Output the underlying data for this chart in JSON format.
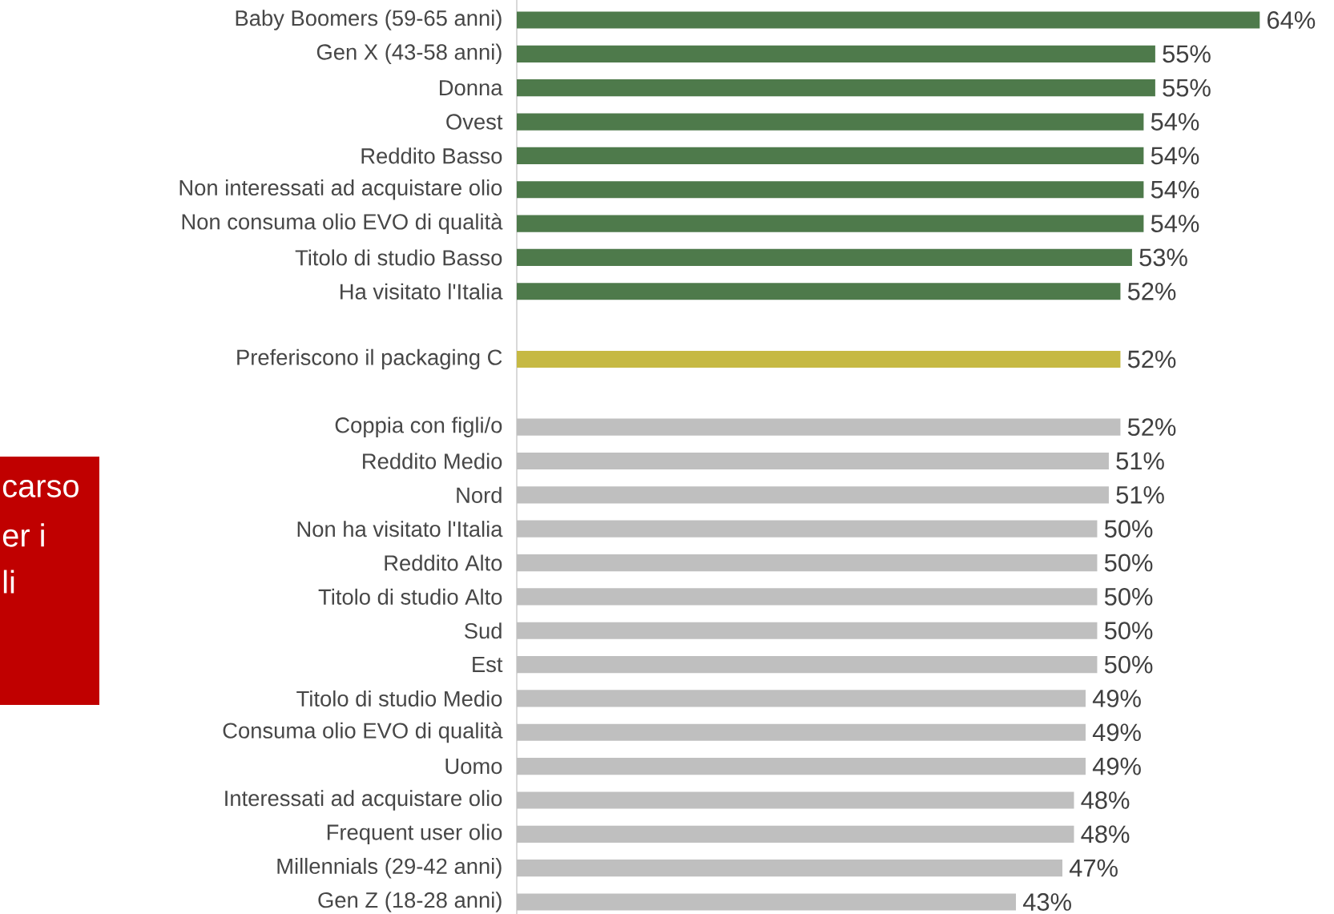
{
  "chart_data": {
    "type": "bar",
    "orientation": "horizontal",
    "categories": [
      "Baby Boomers (59-65 anni)",
      "Gen X (43-58 anni)",
      "Donna",
      "Ovest",
      "Reddito Basso",
      "Non interessati ad acquistare olio",
      "Non consuma olio EVO di qualità",
      "Titolo di studio Basso",
      "Ha visitato l'Italia",
      null,
      "Preferiscono il packaging C",
      null,
      "Coppia con figli/o",
      "Reddito Medio",
      "Nord",
      "Non ha visitato l'Italia",
      "Reddito Alto",
      "Titolo di studio Alto",
      "Sud",
      "Est",
      "Titolo di studio Medio",
      "Consuma olio EVO di qualità",
      "Uomo",
      "Interessati ad acquistare olio",
      "Frequent user olio",
      "Millennials (29-42 anni)",
      "Gen Z (18-28 anni)"
    ],
    "values": [
      64,
      55,
      55,
      54,
      54,
      54,
      54,
      53,
      52,
      null,
      52,
      null,
      52,
      51,
      51,
      50,
      50,
      50,
      50,
      50,
      49,
      49,
      49,
      48,
      48,
      47,
      43
    ],
    "value_labels": [
      "64%",
      "55%",
      "55%",
      "54%",
      "54%",
      "54%",
      "54%",
      "53%",
      "52%",
      null,
      "52%",
      null,
      "52%",
      "51%",
      "51%",
      "50%",
      "50%",
      "50%",
      "50%",
      "50%",
      "49%",
      "49%",
      "49%",
      "48%",
      "48%",
      "47%",
      "43%"
    ],
    "colors": [
      "#4e7a4b",
      "#4e7a4b",
      "#4e7a4b",
      "#4e7a4b",
      "#4e7a4b",
      "#4e7a4b",
      "#4e7a4b",
      "#4e7a4b",
      "#4e7a4b",
      null,
      "#c6b943",
      null,
      "#bfbfbf",
      "#bfbfbf",
      "#bfbfbf",
      "#bfbfbf",
      "#bfbfbf",
      "#bfbfbf",
      "#bfbfbf",
      "#bfbfbf",
      "#bfbfbf",
      "#bfbfbf",
      "#bfbfbf",
      "#bfbfbf",
      "#bfbfbf",
      "#bfbfbf",
      "#bfbfbf"
    ],
    "annotations": [
      "carso",
      "er i",
      "li"
    ]
  }
}
